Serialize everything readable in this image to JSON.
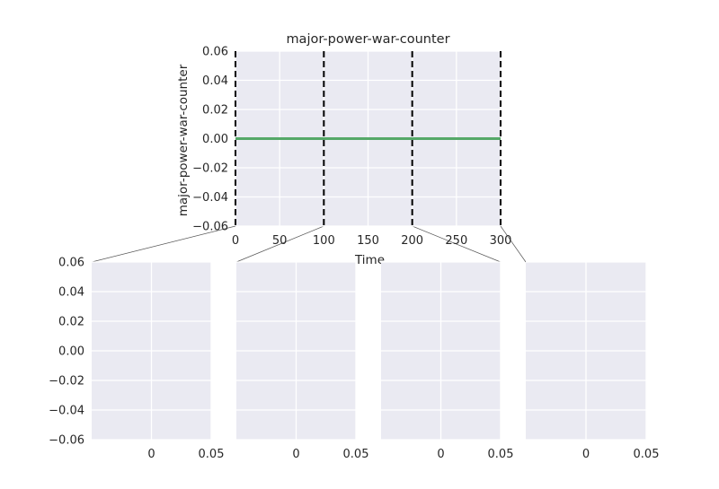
{
  "chart_data": [
    {
      "type": "line",
      "title": "major-power-war-counter",
      "xlabel": "Time",
      "ylabel": "major-power-war-counter",
      "xlim": [
        0,
        300
      ],
      "ylim": [
        -0.06,
        0.06
      ],
      "xticks": [
        0,
        50,
        100,
        150,
        200,
        250,
        300
      ],
      "yticks": [
        -0.06,
        -0.04,
        -0.02,
        0.0,
        0.02,
        0.04,
        0.06
      ],
      "xtick_labels": [
        "0",
        "50",
        "100",
        "150",
        "200",
        "250",
        "300"
      ],
      "ytick_labels": [
        "−0.06",
        "−0.04",
        "−0.02",
        "0.00",
        "0.02",
        "0.04",
        "0.06"
      ],
      "grid": true,
      "series": [
        {
          "x": [
            0,
            300
          ],
          "y": [
            0,
            0
          ],
          "color": "#55a868"
        }
      ],
      "vlines": [
        0,
        100,
        200,
        300
      ],
      "vline_style": "dashed",
      "vline_color": "#000000",
      "background": "#eaeaf2"
    },
    {
      "type": "line",
      "xlim": [
        -0.05,
        0.05
      ],
      "ylim": [
        -0.06,
        0.06
      ],
      "xticks": [
        0,
        0.05
      ],
      "xtick_labels": [
        "0",
        "0.05"
      ],
      "yticks": [
        -0.06,
        -0.04,
        -0.02,
        0.0,
        0.02,
        0.04,
        0.06
      ],
      "ytick_labels": [
        "−0.06",
        "−0.04",
        "−0.02",
        "0.00",
        "0.02",
        "0.04",
        "0.06"
      ],
      "grid": true,
      "series": []
    },
    {
      "type": "line",
      "xlim": [
        -0.05,
        0.05
      ],
      "ylim": [
        -0.06,
        0.06
      ],
      "xticks": [
        0,
        0.05
      ],
      "xtick_labels": [
        "0",
        "0.05"
      ],
      "grid": true,
      "series": []
    },
    {
      "type": "line",
      "xlim": [
        -0.05,
        0.05
      ],
      "ylim": [
        -0.06,
        0.06
      ],
      "xticks": [
        0,
        0.05
      ],
      "xtick_labels": [
        "0",
        "0.05"
      ],
      "grid": true,
      "series": []
    },
    {
      "type": "line",
      "xlim": [
        -0.05,
        0.05
      ],
      "ylim": [
        -0.06,
        0.06
      ],
      "xticks": [
        0,
        0.05
      ],
      "xtick_labels": [
        "0",
        "0.05"
      ],
      "grid": true,
      "series": []
    }
  ]
}
